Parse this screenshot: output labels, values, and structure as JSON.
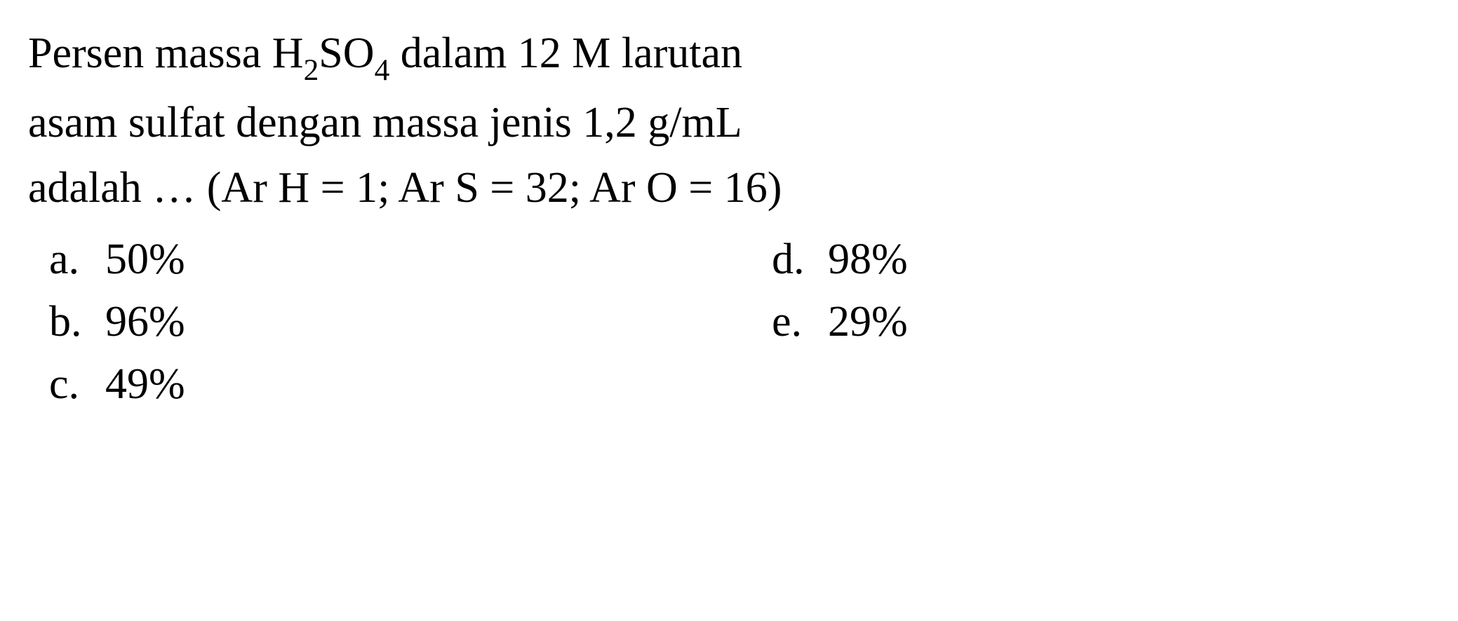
{
  "question": {
    "line1_part1": "Persen massa H",
    "line1_sub1": "2",
    "line1_part2": "SO",
    "line1_sub2": "4",
    "line1_part3": " dalam 12 M larutan",
    "line2": "asam sulfat dengan massa jenis 1,2 g/mL",
    "line3": "adalah … (Ar H = 1; Ar S = 32; Ar O = 16)"
  },
  "options": {
    "a": {
      "letter": "a.",
      "value": "50%"
    },
    "b": {
      "letter": "b.",
      "value": "96%"
    },
    "c": {
      "letter": "c.",
      "value": "49%"
    },
    "d": {
      "letter": "d.",
      "value": "98%"
    },
    "e": {
      "letter": "e.",
      "value": "29%"
    }
  },
  "style": {
    "font_family": "Times New Roman",
    "font_size_pt": 46,
    "text_color": "#000000",
    "background_color": "#ffffff"
  }
}
